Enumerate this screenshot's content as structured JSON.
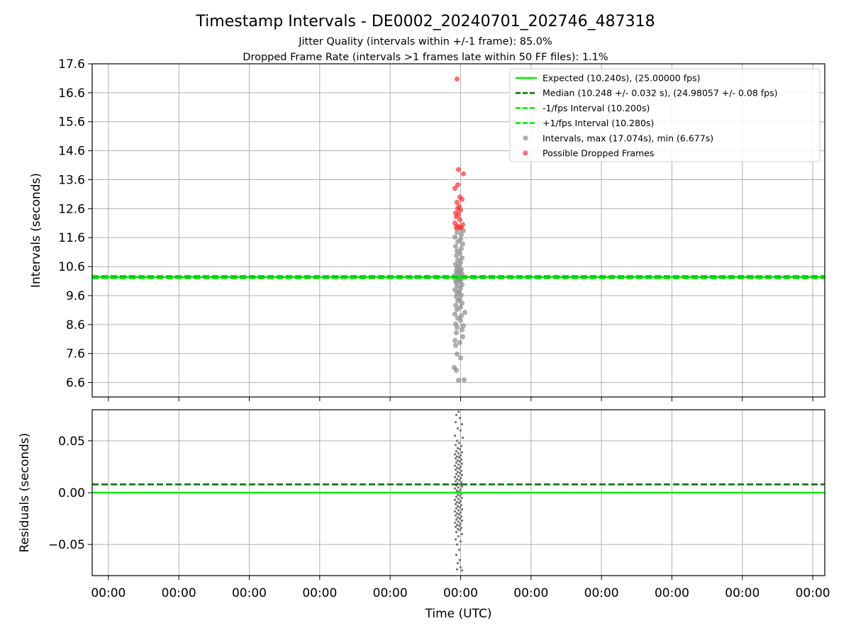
{
  "chart_data": [
    {
      "panel": "intervals",
      "type": "scatter",
      "title": "Timestamp Intervals - DE0002_20240701_202746_487318",
      "subtitles": [
        "Jitter Quality (intervals within +/-1 frame): 85.0%",
        "Dropped Frame Rate (intervals >1 frames late within 50 FF files): 1.1%"
      ],
      "xlabel": "",
      "ylabel": "Intervals (seconds)",
      "ylim": [
        6.1,
        17.6
      ],
      "yticks": [
        6.6,
        7.6,
        8.6,
        9.6,
        10.6,
        11.6,
        12.6,
        13.6,
        14.6,
        15.6,
        16.6,
        17.6
      ],
      "ytick_labels": [
        "6.6",
        "7.6",
        "8.6",
        "9.6",
        "10.6",
        "11.6",
        "12.6",
        "13.6",
        "14.6",
        "15.6",
        "16.6",
        "17.6"
      ],
      "xticks": [
        -4.97,
        -3.97,
        -2.97,
        -1.97,
        -0.97,
        0.03,
        1.03,
        2.03,
        3.03,
        4.03,
        5.03
      ],
      "xlim": [
        -5.2,
        5.2
      ],
      "grid": true,
      "legend_position": "top-right",
      "lines": [
        {
          "name": "Expected (10.240s), (25.00000 fps)",
          "y": 10.24,
          "color": "#00ee00",
          "style": "solid"
        },
        {
          "name": "Median (10.248 +/- 0.032 s), (24.98057 +/- 0.08 fps)",
          "y": 10.248,
          "color": "#007700",
          "style": "dashed"
        },
        {
          "name": "-1/fps Interval (10.200s)",
          "y": 10.2,
          "color": "#00ee00",
          "style": "dashed"
        },
        {
          "name": "+1/fps Interval (10.280s)",
          "y": 10.28,
          "color": "#00ee00",
          "style": "dashed"
        }
      ],
      "series": [
        {
          "name": "Intervals, max (17.074s), min (6.677s)",
          "color": "#8c8c8c",
          "points": [
            [
              0.0,
              6.677
            ],
            [
              0.08,
              6.69
            ],
            [
              -0.03,
              7.02
            ],
            [
              -0.06,
              7.12
            ],
            [
              0.03,
              7.45
            ],
            [
              -0.02,
              7.58
            ],
            [
              -0.04,
              7.88
            ],
            [
              0.02,
              7.98
            ],
            [
              -0.05,
              8.05
            ],
            [
              0.06,
              8.18
            ],
            [
              -0.03,
              8.32
            ],
            [
              0.05,
              8.42
            ],
            [
              -0.02,
              8.5
            ],
            [
              0.07,
              8.56
            ],
            [
              -0.04,
              8.62
            ],
            [
              0.03,
              8.74
            ],
            [
              -0.01,
              8.82
            ],
            [
              0.04,
              8.9
            ],
            [
              -0.05,
              8.96
            ],
            [
              0.09,
              9.02
            ],
            [
              -0.02,
              9.12
            ],
            [
              0.03,
              9.2
            ],
            [
              -0.04,
              9.26
            ],
            [
              0.05,
              9.34
            ],
            [
              -0.01,
              9.42
            ],
            [
              0.02,
              9.48
            ],
            [
              -0.03,
              9.56
            ],
            [
              0.04,
              9.62
            ],
            [
              -0.02,
              9.68
            ],
            [
              0.01,
              9.74
            ],
            [
              -0.05,
              9.8
            ],
            [
              0.03,
              9.86
            ],
            [
              -0.02,
              9.92
            ],
            [
              0.05,
              9.98
            ],
            [
              -0.03,
              10.04
            ],
            [
              0.02,
              10.08
            ],
            [
              -0.04,
              10.12
            ],
            [
              0.04,
              10.16
            ],
            [
              0.0,
              10.19
            ],
            [
              -0.02,
              10.22
            ],
            [
              0.03,
              10.26
            ],
            [
              -0.05,
              10.3
            ],
            [
              0.05,
              10.34
            ],
            [
              -0.01,
              10.38
            ],
            [
              0.02,
              10.42
            ],
            [
              -0.03,
              10.46
            ],
            [
              0.04,
              10.5
            ],
            [
              -0.02,
              10.56
            ],
            [
              0.01,
              10.62
            ],
            [
              -0.04,
              10.68
            ],
            [
              0.03,
              10.74
            ],
            [
              -0.01,
              10.82
            ],
            [
              0.05,
              10.9
            ],
            [
              -0.03,
              10.98
            ],
            [
              0.02,
              11.06
            ],
            [
              -0.02,
              11.14
            ],
            [
              0.04,
              11.22
            ],
            [
              -0.04,
              11.3
            ],
            [
              0.06,
              11.38
            ],
            [
              -0.01,
              11.46
            ],
            [
              0.03,
              11.54
            ],
            [
              -0.05,
              11.62
            ],
            [
              0.04,
              11.7
            ],
            [
              -0.02,
              11.78
            ],
            [
              0.07,
              11.84
            ],
            [
              0.02,
              11.9
            ]
          ]
        },
        {
          "name": "Possible Dropped Frames",
          "color": "#ff3030",
          "points": [
            [
              -0.02,
              17.074
            ],
            [
              0.0,
              13.95
            ],
            [
              0.07,
              13.8
            ],
            [
              -0.01,
              13.42
            ],
            [
              -0.05,
              13.3
            ],
            [
              0.02,
              13.0
            ],
            [
              0.05,
              12.92
            ],
            [
              -0.02,
              12.82
            ],
            [
              0.01,
              12.68
            ],
            [
              -0.01,
              12.6
            ],
            [
              0.03,
              12.55
            ],
            [
              -0.04,
              12.45
            ],
            [
              0.0,
              12.4
            ],
            [
              -0.03,
              12.32
            ],
            [
              0.02,
              12.22
            ],
            [
              -0.05,
              12.1
            ],
            [
              0.06,
              12.05
            ],
            [
              -0.02,
              12.0
            ],
            [
              0.01,
              11.96
            ],
            [
              -0.03,
              11.93
            ],
            [
              0.04,
              11.95
            ]
          ]
        }
      ]
    },
    {
      "panel": "residuals",
      "type": "scatter",
      "xlabel": "Time (UTC)",
      "ylabel": "Residuals (seconds)",
      "ylim": [
        -0.08,
        0.08
      ],
      "yticks": [
        -0.05,
        0.0,
        0.05
      ],
      "ytick_labels": [
        "−0.05",
        "0.00",
        "0.05"
      ],
      "xticks": [
        -4.97,
        -3.97,
        -2.97,
        -1.97,
        -0.97,
        0.03,
        1.03,
        2.03,
        3.03,
        4.03,
        5.03
      ],
      "xtick_labels": [
        "00:00",
        "00:00",
        "00:00",
        "00:00",
        "00:00",
        "00:00",
        "00:00",
        "00:00",
        "00:00",
        "00:00",
        "00:00"
      ],
      "xlim": [
        -5.2,
        5.2
      ],
      "grid": true,
      "lines": [
        {
          "name": "Expected",
          "y": 0.0,
          "color": "#00ee00",
          "style": "solid"
        },
        {
          "name": "Median",
          "y": 0.008,
          "color": "#007700",
          "style": "dashed"
        }
      ],
      "series": [
        {
          "name": "Residuals",
          "color": "#6e6e6e",
          "points": [
            [
              -0.03,
              0.075
            ],
            [
              0.0,
              0.078
            ],
            [
              0.02,
              0.072
            ],
            [
              -0.04,
              0.068
            ],
            [
              0.05,
              0.066
            ],
            [
              -0.01,
              0.062
            ],
            [
              0.03,
              0.06
            ],
            [
              -0.05,
              0.055
            ],
            [
              0.06,
              0.053
            ],
            [
              -0.02,
              0.05
            ],
            [
              0.01,
              0.048
            ],
            [
              -0.04,
              0.046
            ],
            [
              0.04,
              0.045
            ],
            [
              -0.01,
              0.043
            ],
            [
              0.02,
              0.042
            ],
            [
              -0.03,
              0.04
            ],
            [
              0.05,
              0.039
            ],
            [
              0.0,
              0.038
            ],
            [
              -0.05,
              0.037
            ],
            [
              0.03,
              0.036
            ],
            [
              -0.02,
              0.035
            ],
            [
              0.01,
              0.034
            ],
            [
              -0.04,
              0.033
            ],
            [
              0.04,
              0.032
            ],
            [
              -0.01,
              0.031
            ],
            [
              0.02,
              0.03
            ],
            [
              -0.03,
              0.029
            ],
            [
              0.05,
              0.028
            ],
            [
              0.0,
              0.027
            ],
            [
              -0.05,
              0.026
            ],
            [
              0.03,
              0.025
            ],
            [
              -0.02,
              0.024
            ],
            [
              0.01,
              0.023
            ],
            [
              -0.04,
              0.022
            ],
            [
              0.04,
              0.021
            ],
            [
              -0.01,
              0.02
            ],
            [
              0.02,
              0.019
            ],
            [
              -0.03,
              0.018
            ],
            [
              0.05,
              0.017
            ],
            [
              0.0,
              0.016
            ],
            [
              -0.05,
              0.015
            ],
            [
              0.03,
              0.014
            ],
            [
              -0.02,
              0.013
            ],
            [
              0.01,
              0.012
            ],
            [
              -0.04,
              0.011
            ],
            [
              0.04,
              0.01
            ],
            [
              -0.01,
              0.009
            ],
            [
              0.02,
              0.008
            ],
            [
              -0.03,
              0.007
            ],
            [
              0.05,
              0.006
            ],
            [
              0.0,
              0.005
            ],
            [
              -0.05,
              0.004
            ],
            [
              0.03,
              0.003
            ],
            [
              -0.02,
              0.002
            ],
            [
              0.01,
              0.001
            ],
            [
              -0.04,
              0.0
            ],
            [
              0.04,
              -0.001
            ],
            [
              -0.01,
              -0.002
            ],
            [
              0.02,
              -0.003
            ],
            [
              -0.03,
              -0.004
            ],
            [
              0.05,
              -0.005
            ],
            [
              0.0,
              -0.006
            ],
            [
              -0.05,
              -0.007
            ],
            [
              0.03,
              -0.008
            ],
            [
              -0.02,
              -0.009
            ],
            [
              0.01,
              -0.01
            ],
            [
              -0.04,
              -0.011
            ],
            [
              0.04,
              -0.012
            ],
            [
              -0.01,
              -0.013
            ],
            [
              0.02,
              -0.014
            ],
            [
              -0.03,
              -0.015
            ],
            [
              0.05,
              -0.016
            ],
            [
              0.0,
              -0.017
            ],
            [
              -0.05,
              -0.018
            ],
            [
              0.03,
              -0.019
            ],
            [
              -0.02,
              -0.02
            ],
            [
              0.01,
              -0.021
            ],
            [
              -0.04,
              -0.022
            ],
            [
              0.04,
              -0.023
            ],
            [
              -0.01,
              -0.024
            ],
            [
              0.02,
              -0.025
            ],
            [
              -0.03,
              -0.026
            ],
            [
              0.05,
              -0.027
            ],
            [
              0.0,
              -0.028
            ],
            [
              -0.05,
              -0.029
            ],
            [
              0.03,
              -0.03
            ],
            [
              -0.02,
              -0.031
            ],
            [
              0.01,
              -0.032
            ],
            [
              -0.04,
              -0.033
            ],
            [
              0.04,
              -0.034
            ],
            [
              -0.01,
              -0.035
            ],
            [
              0.02,
              -0.036
            ],
            [
              -0.03,
              -0.038
            ],
            [
              0.05,
              -0.04
            ],
            [
              0.0,
              -0.042
            ],
            [
              -0.04,
              -0.045
            ],
            [
              0.03,
              -0.047
            ],
            [
              -0.02,
              -0.05
            ],
            [
              0.01,
              -0.055
            ],
            [
              -0.03,
              -0.06
            ],
            [
              0.02,
              -0.065
            ],
            [
              -0.01,
              -0.068
            ],
            [
              0.03,
              -0.072
            ],
            [
              -0.02,
              -0.074
            ],
            [
              0.05,
              -0.075
            ]
          ]
        }
      ]
    }
  ]
}
